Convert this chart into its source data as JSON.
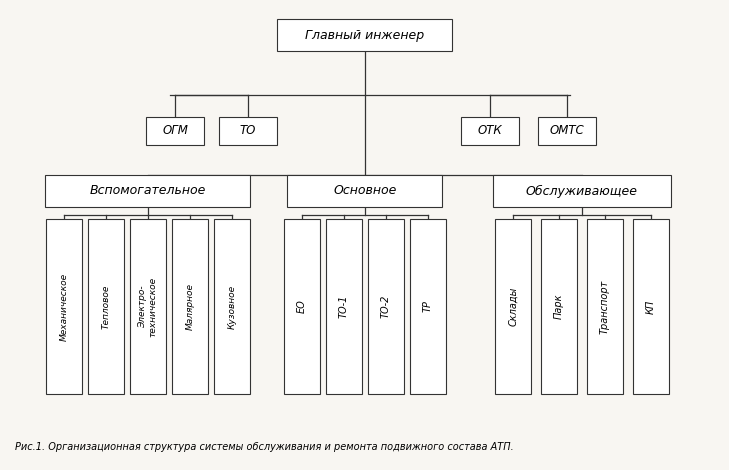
{
  "bg_color": "#f8f6f2",
  "title": "Главный инженер",
  "level2_left": [
    "ОГМ",
    "ТО"
  ],
  "level2_right": [
    "ОТК",
    "ОМТС"
  ],
  "level3": [
    "Вспомогательное",
    "Основное",
    "Обслуживающее"
  ],
  "level4_vsp": [
    "Механическое",
    "Тепловое",
    "Электро-\nтехническое",
    "Малярное",
    "Кузовное"
  ],
  "level4_osn": [
    "ЕО",
    "ТО-1",
    "ТО-2",
    "ТР"
  ],
  "level4_obs": [
    "Склады",
    "Парк",
    "Транспорт",
    "КП"
  ],
  "caption": "Рис.1. Организационная структура системы обслуживания и ремонта подвижного состава АТП.",
  "box_edge_color": "#333333",
  "box_face_color": "#ffffff",
  "line_color": "#333333"
}
